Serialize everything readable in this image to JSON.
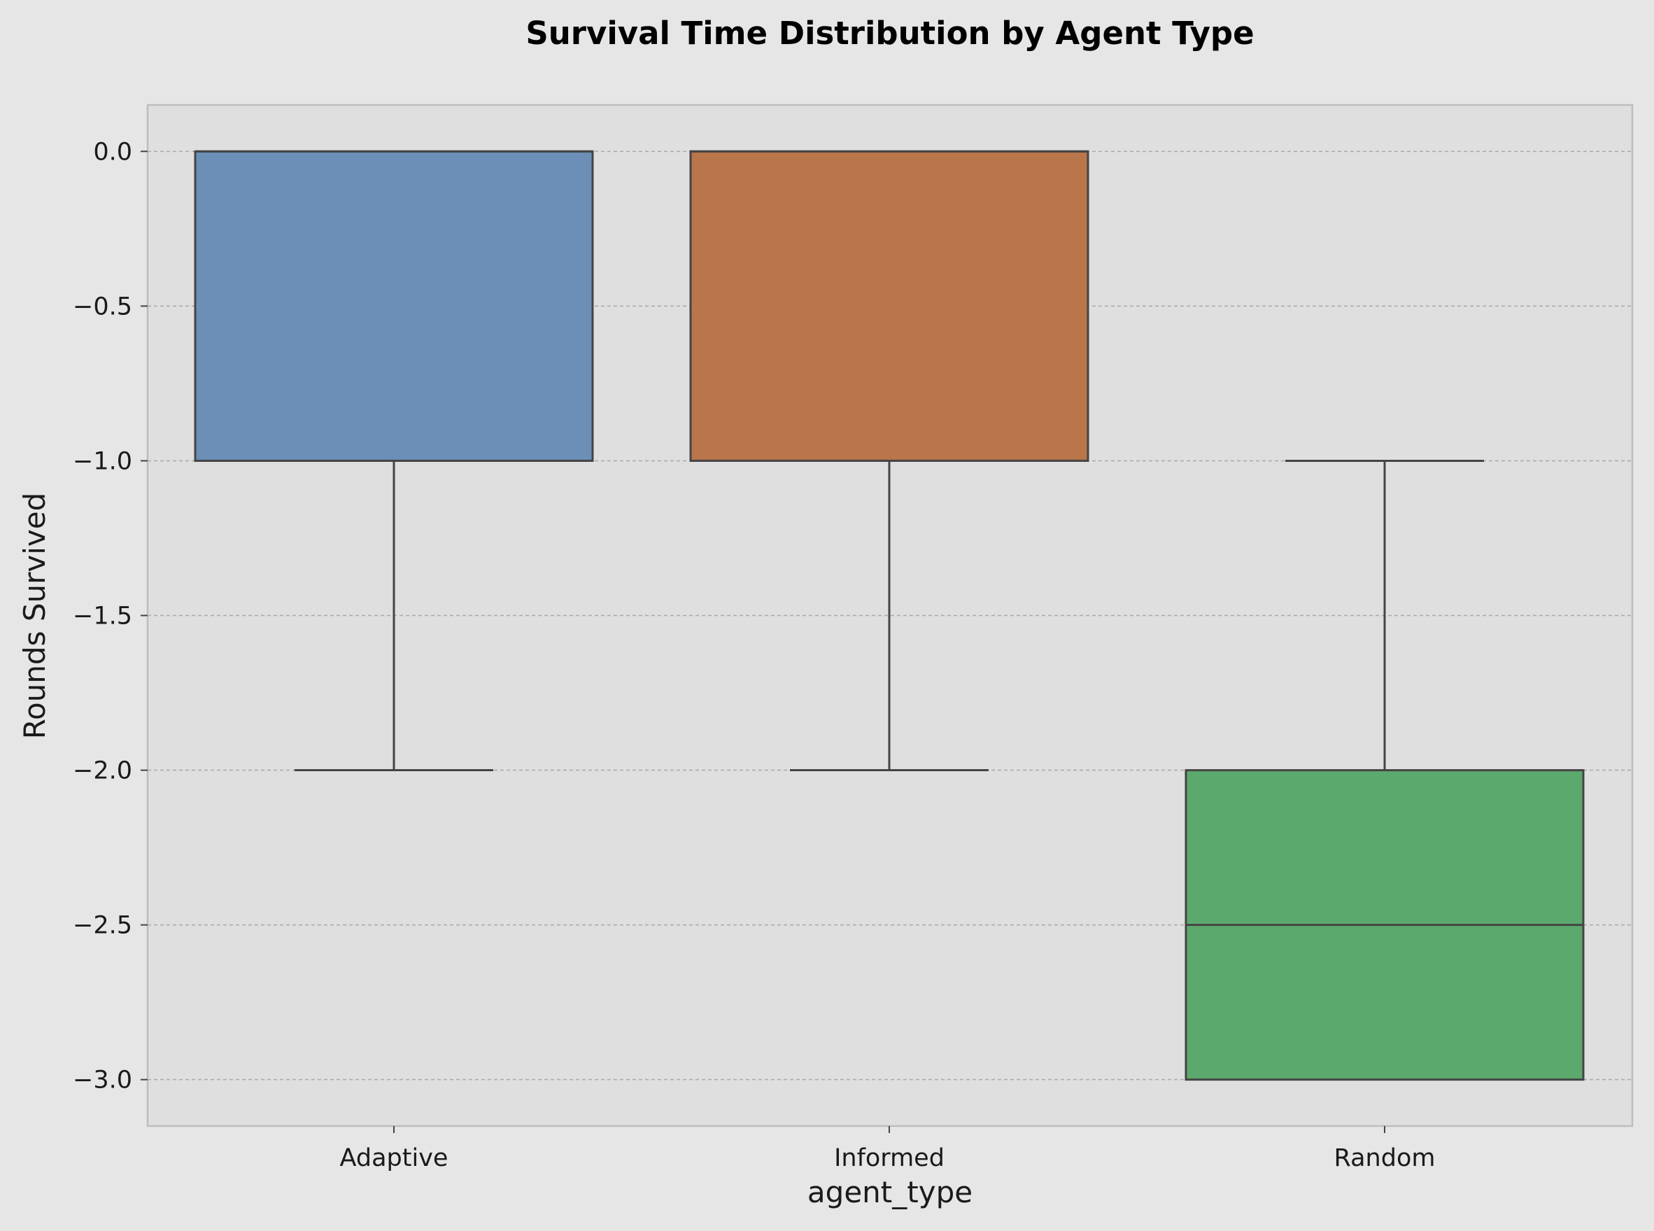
{
  "chart_data": {
    "type": "box",
    "title": "Survival Time Distribution by Agent Type",
    "xlabel": "agent_type",
    "ylabel": "Rounds Survived",
    "ylim": [
      -3.15,
      0.15
    ],
    "yticks": [
      0.0,
      -0.5,
      -1.0,
      -1.5,
      -2.0,
      -2.5,
      -3.0
    ],
    "ytick_labels": [
      "0.0",
      "−0.5",
      "−1.0",
      "−1.5",
      "−2.0",
      "−2.5",
      "−3.0"
    ],
    "grid": "horizontal dashed",
    "categories": [
      "Adaptive",
      "Informed",
      "Random"
    ],
    "boxes": [
      {
        "category": "Adaptive",
        "whisker_low": -2.0,
        "q1": -1.0,
        "median": 0.0,
        "q3": 0.0,
        "whisker_high": 0.0,
        "color": "#6b8fb7"
      },
      {
        "category": "Informed",
        "whisker_low": -2.0,
        "q1": -1.0,
        "median": 0.0,
        "q3": 0.0,
        "whisker_high": 0.0,
        "color": "#b8764a"
      },
      {
        "category": "Random",
        "whisker_low": -3.0,
        "q1": -3.0,
        "median": -2.5,
        "q3": -2.0,
        "whisker_high": -1.0,
        "color": "#5ba96c"
      }
    ]
  },
  "colors": {
    "figure_background": "#e6e6e6",
    "plot_background": "#dfdfdf",
    "box_edge": "#444444",
    "grid": "#a8a8a8",
    "frame": "#bdbdbd"
  }
}
